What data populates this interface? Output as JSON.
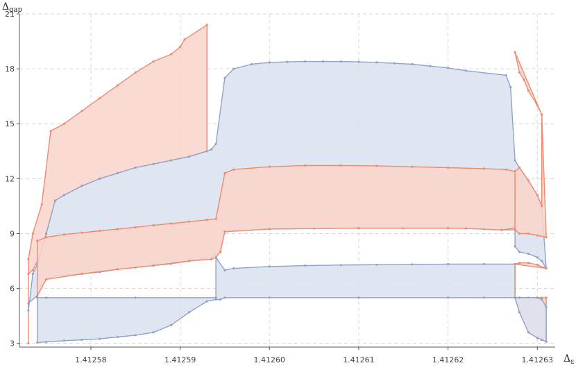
{
  "chart_data": {
    "type": "area",
    "xlabel": "Δ",
    "xlabel_sub": "ε",
    "ylabel": "Δ",
    "ylabel_sub": "gap",
    "xlim": [
      1.412572,
      1.412632
    ],
    "ylim": [
      2.8,
      21
    ],
    "xticks": [
      1.41258,
      1.41259,
      1.4126,
      1.41261,
      1.41262,
      1.41263
    ],
    "xtick_labels": [
      "1.41258",
      "1.41259",
      "1.41260",
      "1.41261",
      "1.41262",
      "1.41263"
    ],
    "yticks": [
      3,
      6,
      9,
      12,
      15,
      18,
      21
    ],
    "ytick_labels": [
      "3",
      "6",
      "9",
      "12",
      "15",
      "18",
      "21"
    ],
    "grid": true,
    "colors": {
      "blue_line": "#8fa3c8",
      "blue_fill": "#dbe2ef",
      "orange_line": "#ee8a6d",
      "orange_fill": "#f9d5cb"
    },
    "series": [
      {
        "color": "orange",
        "points": [
          [
            1.412573,
            3.0
          ],
          [
            1.412573,
            7.6
          ],
          [
            1.4125735,
            9.0
          ],
          [
            1.4125745,
            10.6
          ],
          [
            1.4125755,
            14.6
          ],
          [
            1.412577,
            15.0
          ],
          [
            1.412579,
            15.7
          ],
          [
            1.412581,
            16.4
          ],
          [
            1.412583,
            17.1
          ],
          [
            1.412585,
            17.8
          ],
          [
            1.412587,
            18.4
          ],
          [
            1.412589,
            18.8
          ],
          [
            1.41259,
            19.2
          ],
          [
            1.4125905,
            19.6
          ],
          [
            1.412593,
            20.4
          ],
          [
            1.412593,
            13.5
          ],
          [
            1.412591,
            13.2
          ],
          [
            1.412589,
            13.0
          ],
          [
            1.412587,
            12.8
          ],
          [
            1.412585,
            12.6
          ],
          [
            1.412583,
            12.3
          ],
          [
            1.412581,
            12.0
          ],
          [
            1.412579,
            11.6
          ],
          [
            1.412577,
            11.1
          ],
          [
            1.412576,
            10.8
          ],
          [
            1.412575,
            9.0
          ],
          [
            1.4125745,
            8.0
          ],
          [
            1.4125735,
            7.0
          ],
          [
            1.412573,
            6.8
          ]
        ]
      },
      {
        "color": "blue",
        "points": [
          [
            1.412593,
            13.5
          ],
          [
            1.4125935,
            13.6
          ],
          [
            1.412594,
            13.9
          ],
          [
            1.412595,
            17.5
          ],
          [
            1.412596,
            18.0
          ],
          [
            1.412598,
            18.25
          ],
          [
            1.4126,
            18.35
          ],
          [
            1.412602,
            18.38
          ],
          [
            1.412604,
            18.4
          ],
          [
            1.412606,
            18.4
          ],
          [
            1.412608,
            18.4
          ],
          [
            1.41261,
            18.38
          ],
          [
            1.412612,
            18.35
          ],
          [
            1.412614,
            18.3
          ],
          [
            1.412616,
            18.25
          ],
          [
            1.412618,
            18.15
          ],
          [
            1.41262,
            18.05
          ],
          [
            1.412622,
            17.9
          ],
          [
            1.4126265,
            17.65
          ],
          [
            1.412627,
            17.0
          ],
          [
            1.4126275,
            13.0
          ],
          [
            1.412628,
            12.6
          ],
          [
            1.412629,
            11.9
          ],
          [
            1.41263,
            11.1
          ],
          [
            1.4126305,
            10.5
          ],
          [
            1.412631,
            7.1
          ],
          [
            1.4126305,
            7.5
          ],
          [
            1.41263,
            7.7
          ],
          [
            1.412629,
            7.9
          ],
          [
            1.412628,
            8.0
          ],
          [
            1.4126275,
            8.3
          ],
          [
            1.4126275,
            9.2
          ],
          [
            1.412626,
            9.2
          ],
          [
            1.412624,
            9.25
          ],
          [
            1.412622,
            9.28
          ],
          [
            1.41262,
            9.3
          ],
          [
            1.412615,
            9.3
          ],
          [
            1.41261,
            9.3
          ],
          [
            1.412605,
            9.28
          ],
          [
            1.4126,
            9.25
          ],
          [
            1.412598,
            9.2
          ],
          [
            1.412595,
            9.1
          ],
          [
            1.4125945,
            8.0
          ],
          [
            1.4125935,
            7.7
          ],
          [
            1.412591,
            7.5
          ],
          [
            1.412589,
            7.35
          ],
          [
            1.412587,
            7.25
          ],
          [
            1.412585,
            7.15
          ],
          [
            1.412583,
            7.05
          ],
          [
            1.412581,
            6.9
          ],
          [
            1.412579,
            6.8
          ],
          [
            1.412576,
            6.7
          ],
          [
            1.412575,
            6.5
          ],
          [
            1.412574,
            5.6
          ],
          [
            1.412573,
            5.2
          ],
          [
            1.412573,
            4.8
          ],
          [
            1.4125735,
            6.8
          ],
          [
            1.412574,
            7.3
          ],
          [
            1.412575,
            9.0
          ],
          [
            1.412576,
            10.8
          ],
          [
            1.412577,
            11.1
          ],
          [
            1.412579,
            11.6
          ],
          [
            1.412581,
            12.0
          ],
          [
            1.412583,
            12.3
          ],
          [
            1.412585,
            12.6
          ],
          [
            1.412587,
            12.8
          ],
          [
            1.412589,
            13.0
          ],
          [
            1.412591,
            13.2
          ]
        ]
      },
      {
        "color": "orange",
        "points": [
          [
            1.412594,
            9.8
          ],
          [
            1.412595,
            12.3
          ],
          [
            1.412596,
            12.5
          ],
          [
            1.4126,
            12.65
          ],
          [
            1.412604,
            12.72
          ],
          [
            1.412608,
            12.72
          ],
          [
            1.412612,
            12.7
          ],
          [
            1.412616,
            12.65
          ],
          [
            1.41262,
            12.6
          ],
          [
            1.412624,
            12.55
          ],
          [
            1.4126265,
            12.5
          ],
          [
            1.4126275,
            12.4
          ],
          [
            1.4126275,
            9.3
          ],
          [
            1.412626,
            9.2
          ],
          [
            1.412622,
            9.28
          ],
          [
            1.41262,
            9.3
          ],
          [
            1.41261,
            9.3
          ],
          [
            1.4126,
            9.25
          ],
          [
            1.412595,
            9.1
          ],
          [
            1.4125945,
            8.0
          ],
          [
            1.412594,
            7.7
          ],
          [
            1.4125935,
            7.6
          ],
          [
            1.412591,
            7.5
          ],
          [
            1.412587,
            7.25
          ],
          [
            1.412583,
            7.05
          ],
          [
            1.412579,
            6.8
          ],
          [
            1.412575,
            6.5
          ],
          [
            1.412574,
            5.6
          ],
          [
            1.412574,
            8.6
          ],
          [
            1.412575,
            8.8
          ],
          [
            1.412577,
            8.95
          ],
          [
            1.412579,
            9.05
          ],
          [
            1.412581,
            9.15
          ],
          [
            1.412583,
            9.25
          ],
          [
            1.412585,
            9.35
          ],
          [
            1.412587,
            9.45
          ],
          [
            1.412589,
            9.55
          ],
          [
            1.412591,
            9.65
          ],
          [
            1.412593,
            9.75
          ]
        ]
      },
      {
        "color": "blue",
        "points": [
          [
            1.412594,
            7.7
          ],
          [
            1.412595,
            7.0
          ],
          [
            1.412596,
            7.1
          ],
          [
            1.4126,
            7.2
          ],
          [
            1.412604,
            7.25
          ],
          [
            1.412608,
            7.28
          ],
          [
            1.412612,
            7.3
          ],
          [
            1.412616,
            7.32
          ],
          [
            1.41262,
            7.33
          ],
          [
            1.412624,
            7.33
          ],
          [
            1.4126275,
            7.33
          ],
          [
            1.4126275,
            5.5
          ],
          [
            1.412624,
            5.5
          ],
          [
            1.41262,
            5.5
          ],
          [
            1.41261,
            5.5
          ],
          [
            1.4126,
            5.5
          ],
          [
            1.412595,
            5.5
          ],
          [
            1.4125945,
            5.4
          ],
          [
            1.412594,
            5.4
          ],
          [
            1.412593,
            5.3
          ],
          [
            1.412591,
            4.7
          ],
          [
            1.412589,
            4.0
          ],
          [
            1.412587,
            3.6
          ],
          [
            1.412585,
            3.45
          ],
          [
            1.412583,
            3.35
          ],
          [
            1.412581,
            3.25
          ],
          [
            1.412579,
            3.2
          ],
          [
            1.412577,
            3.15
          ],
          [
            1.412575,
            3.08
          ],
          [
            1.412574,
            3.05
          ],
          [
            1.412574,
            5.5
          ],
          [
            1.412575,
            5.5
          ],
          [
            1.412585,
            5.5
          ],
          [
            1.412594,
            5.5
          ]
        ]
      },
      {
        "color": "orange",
        "points": [
          [
            1.4126275,
            18.9
          ],
          [
            1.412628,
            17.8
          ],
          [
            1.4126285,
            17.4
          ],
          [
            1.412629,
            16.8
          ],
          [
            1.41263,
            16.0
          ],
          [
            1.4126305,
            15.5
          ],
          [
            1.412631,
            8.8
          ],
          [
            1.41263,
            8.9
          ],
          [
            1.412629,
            9.0
          ],
          [
            1.412628,
            9.0
          ],
          [
            1.4126275,
            9.2
          ],
          [
            1.4126275,
            12.4
          ],
          [
            1.412628,
            12.6
          ],
          [
            1.412629,
            11.9
          ],
          [
            1.41263,
            11.1
          ],
          [
            1.4126305,
            10.5
          ],
          [
            1.4126305,
            15.5
          ]
        ]
      },
      {
        "color": "orange",
        "points": [
          [
            1.4126275,
            7.33
          ],
          [
            1.4126275,
            5.5
          ],
          [
            1.412628,
            4.7
          ],
          [
            1.412629,
            3.6
          ],
          [
            1.41263,
            3.3
          ],
          [
            1.4126305,
            3.2
          ],
          [
            1.412631,
            3.1
          ],
          [
            1.412631,
            5.5
          ],
          [
            1.4126305,
            5.5
          ],
          [
            1.41263,
            5.5
          ],
          [
            1.412629,
            5.5
          ],
          [
            1.412628,
            5.5
          ],
          [
            1.4126275,
            5.5
          ],
          [
            1.4126275,
            7.33
          ],
          [
            1.412628,
            7.4
          ],
          [
            1.412629,
            7.4
          ],
          [
            1.41263,
            7.3
          ],
          [
            1.412631,
            7.1
          ]
        ]
      },
      {
        "color": "blue",
        "points": [
          [
            1.4126275,
            5.5
          ],
          [
            1.412628,
            4.7
          ],
          [
            1.412629,
            3.6
          ],
          [
            1.41263,
            3.3
          ],
          [
            1.4126305,
            3.2
          ],
          [
            1.412631,
            3.1
          ],
          [
            1.412631,
            5.0
          ],
          [
            1.4126305,
            5.4
          ],
          [
            1.41263,
            5.5
          ],
          [
            1.412628,
            5.5
          ]
        ]
      }
    ]
  }
}
